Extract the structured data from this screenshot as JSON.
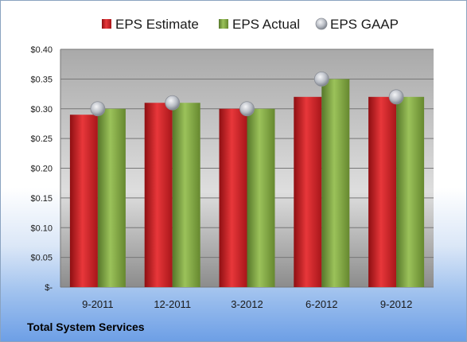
{
  "company": "Total System Services",
  "chart_data": {
    "type": "bar",
    "categories": [
      "9-2011",
      "12-2011",
      "3-2012",
      "6-2012",
      "9-2012"
    ],
    "series": [
      {
        "name": "EPS Estimate",
        "type": "bar",
        "color": "#c81e22",
        "values": [
          0.29,
          0.31,
          0.3,
          0.32,
          0.32
        ]
      },
      {
        "name": "EPS Actual",
        "type": "bar",
        "color": "#7ea441",
        "values": [
          0.3,
          0.31,
          0.3,
          0.35,
          0.32
        ]
      },
      {
        "name": "EPS GAAP",
        "type": "scatter",
        "color": "#b8bcc4",
        "values": [
          0.3,
          0.31,
          0.3,
          0.35,
          0.32
        ]
      }
    ],
    "yticks": [
      "$-",
      "$0.05",
      "$0.10",
      "$0.15",
      "$0.20",
      "$0.25",
      "$0.30",
      "$0.35",
      "$0.40"
    ],
    "ylim": [
      0,
      0.4
    ],
    "grid": true,
    "legend": "top"
  }
}
